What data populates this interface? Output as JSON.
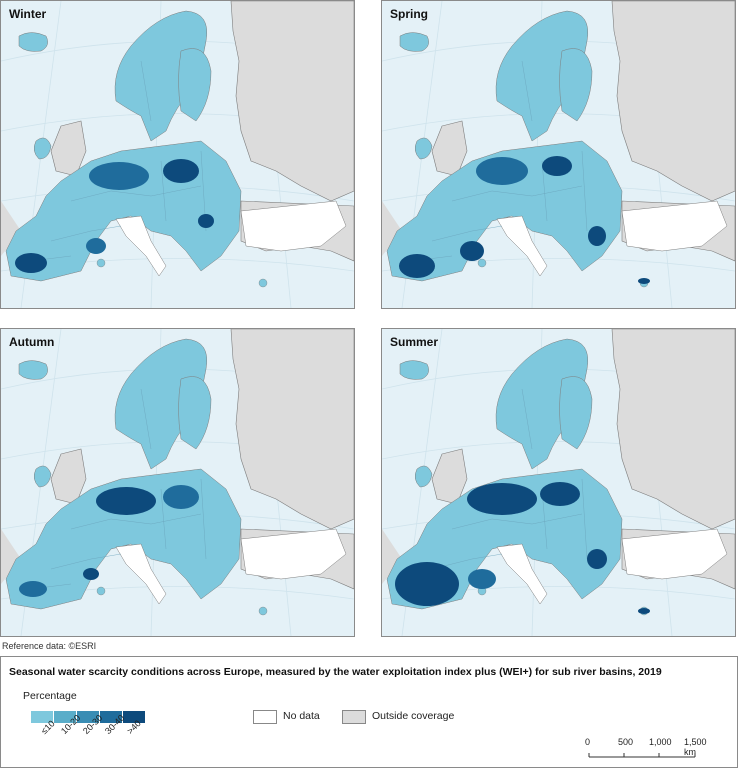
{
  "panels": [
    {
      "season": "Winter"
    },
    {
      "season": "Spring"
    },
    {
      "season": "Autumn"
    },
    {
      "season": "Summer"
    }
  ],
  "reference": "Reference data: ©ESRI",
  "legend": {
    "title": "Seasonal water scarcity conditions across Europe, measured by the water exploitation index plus (WEI+) for sub river basins, 2019",
    "subtitle": "Percentage",
    "classes": [
      {
        "label": "≤10",
        "color": "#7ec8dd"
      },
      {
        "label": "10-20",
        "color": "#5aadc9"
      },
      {
        "label": "20-30",
        "color": "#3a8db4"
      },
      {
        "label": "30-40",
        "color": "#1f6c9c"
      },
      {
        "label": ">40",
        "color": "#0d4a7c"
      }
    ],
    "no_data": {
      "label": "No data",
      "color": "#ffffff"
    },
    "outside": {
      "label": "Outside coverage",
      "color": "#dcdcdc"
    },
    "scale": {
      "ticks": [
        "0",
        "500",
        "1,000",
        "1,500 km"
      ]
    }
  },
  "colors": {
    "sea": "#e4f1f7",
    "land_outside": "#dcdcdc",
    "border": "#7d7d7d"
  }
}
